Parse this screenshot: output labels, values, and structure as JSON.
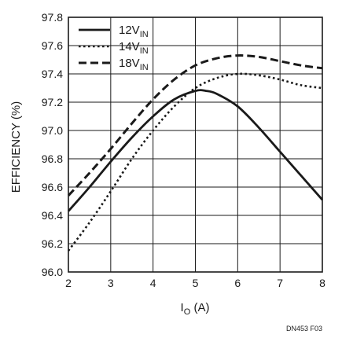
{
  "chart_data": {
    "type": "line",
    "title": "",
    "xlabel": {
      "main": "I",
      "sub": "O",
      "rest": " (A)"
    },
    "ylabel": "EFFICIENCY (%)",
    "xlim": [
      2,
      8
    ],
    "ylim": [
      96.0,
      97.8
    ],
    "x_ticks": [
      "2",
      "3",
      "4",
      "5",
      "6",
      "7",
      "8"
    ],
    "y_ticks": [
      "96.0",
      "96.2",
      "96.4",
      "96.6",
      "96.8",
      "97.0",
      "97.2",
      "97.4",
      "97.6",
      "97.8"
    ],
    "grid": true,
    "legend_position": "top-left",
    "series": [
      {
        "name": "12V",
        "name_sub": "IN",
        "style": "solid",
        "x": [
          2.0,
          2.5,
          3.0,
          3.5,
          4.0,
          4.5,
          5.0,
          5.25,
          5.5,
          6.0,
          6.5,
          7.0,
          7.5,
          8.0
        ],
        "y": [
          96.43,
          96.6,
          96.78,
          96.95,
          97.1,
          97.22,
          97.28,
          97.28,
          97.26,
          97.17,
          97.02,
          96.85,
          96.68,
          96.51
        ]
      },
      {
        "name": "14V",
        "name_sub": "IN",
        "style": "dotted",
        "x": [
          2.0,
          2.5,
          3.0,
          3.5,
          4.0,
          4.5,
          5.0,
          5.5,
          6.0,
          6.5,
          7.0,
          7.5,
          8.0
        ],
        "y": [
          96.15,
          96.35,
          96.57,
          96.8,
          97.0,
          97.17,
          97.3,
          97.37,
          97.4,
          97.39,
          97.36,
          97.32,
          97.3
        ]
      },
      {
        "name": "18V",
        "name_sub": "IN",
        "style": "dashed",
        "x": [
          2.0,
          2.5,
          3.0,
          3.5,
          4.0,
          4.5,
          5.0,
          5.5,
          6.0,
          6.5,
          7.0,
          7.5,
          8.0
        ],
        "y": [
          96.54,
          96.7,
          96.87,
          97.05,
          97.22,
          97.36,
          97.46,
          97.51,
          97.53,
          97.52,
          97.49,
          97.46,
          97.44
        ]
      }
    ]
  },
  "figure_code": "DN453 F03",
  "colors": {
    "line": "#1a1a1a",
    "grid": "#1a1a1a",
    "background": "#ffffff"
  }
}
